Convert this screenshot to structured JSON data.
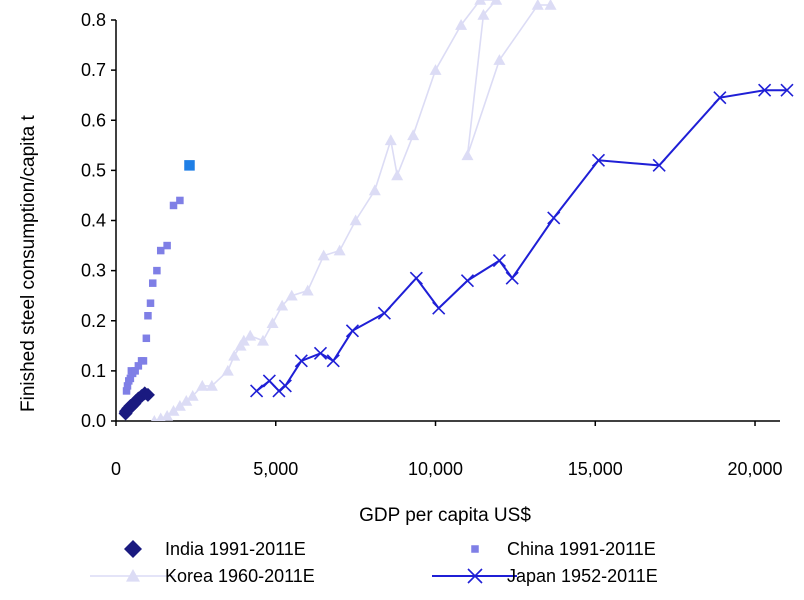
{
  "chart_data": {
    "type": "scatter",
    "title": "",
    "xlabel": "GDP per capita US$",
    "ylabel": "Finished steel consumption/capita t",
    "xlim": [
      0,
      20500
    ],
    "ylim": [
      0,
      0.8
    ],
    "xticks": [
      0,
      5000,
      10000,
      15000,
      20000
    ],
    "xtick_labels": [
      "0",
      "5,000",
      "10,000",
      "15,000",
      "20,000"
    ],
    "yticks": [
      0.0,
      0.1,
      0.2,
      0.3,
      0.4,
      0.5,
      0.6,
      0.7,
      0.8
    ],
    "ytick_labels": [
      "0.0",
      "0.1",
      "0.2",
      "0.3",
      "0.4",
      "0.5",
      "0.6",
      "0.7",
      "0.8"
    ],
    "grid": false,
    "legend_position": "bottom",
    "series": [
      {
        "name": "India 1991-2011E",
        "marker": "diamond",
        "line": false,
        "color": "#1a1a80",
        "points": [
          [
            300,
            0.015
          ],
          [
            310,
            0.018
          ],
          [
            320,
            0.02
          ],
          [
            340,
            0.02
          ],
          [
            360,
            0.022
          ],
          [
            380,
            0.025
          ],
          [
            400,
            0.025
          ],
          [
            420,
            0.027
          ],
          [
            450,
            0.03
          ],
          [
            470,
            0.028
          ],
          [
            500,
            0.03
          ],
          [
            540,
            0.033
          ],
          [
            580,
            0.035
          ],
          [
            620,
            0.04
          ],
          [
            700,
            0.045
          ],
          [
            800,
            0.05
          ],
          [
            900,
            0.055
          ],
          [
            1000,
            0.052
          ]
        ]
      },
      {
        "name": "China 1991-2011E",
        "marker": "square",
        "line": false,
        "color": "#7f7fe6",
        "highlight_color": "#1f7fe6",
        "points": [
          [
            330,
            0.06
          ],
          [
            360,
            0.07
          ],
          [
            400,
            0.08
          ],
          [
            450,
            0.085
          ],
          [
            480,
            0.1
          ],
          [
            520,
            0.095
          ],
          [
            600,
            0.1
          ],
          [
            700,
            0.11
          ],
          [
            800,
            0.12
          ],
          [
            860,
            0.12
          ],
          [
            950,
            0.165
          ],
          [
            1000,
            0.21
          ],
          [
            1080,
            0.235
          ],
          [
            1150,
            0.275
          ],
          [
            1280,
            0.3
          ],
          [
            1400,
            0.34
          ],
          [
            1600,
            0.35
          ],
          [
            1800,
            0.43
          ],
          [
            2000,
            0.44
          ],
          [
            2300,
            0.51
          ]
        ]
      },
      {
        "name": "Korea 1960-2011E",
        "marker": "triangle",
        "line": true,
        "color": "#dcdcf5",
        "points": [
          [
            1200,
            0.0
          ],
          [
            1400,
            0.005
          ],
          [
            1600,
            0.01
          ],
          [
            1800,
            0.02
          ],
          [
            2000,
            0.03
          ],
          [
            2200,
            0.04
          ],
          [
            2400,
            0.05
          ],
          [
            2700,
            0.07
          ],
          [
            3000,
            0.07
          ],
          [
            3500,
            0.1
          ],
          [
            3700,
            0.13
          ],
          [
            3900,
            0.15
          ],
          [
            4000,
            0.16
          ],
          [
            4200,
            0.17
          ],
          [
            4600,
            0.16
          ],
          [
            4900,
            0.195
          ],
          [
            5200,
            0.23
          ],
          [
            5500,
            0.25
          ],
          [
            6000,
            0.26
          ],
          [
            6500,
            0.33
          ],
          [
            7000,
            0.34
          ],
          [
            7500,
            0.4
          ],
          [
            8100,
            0.46
          ],
          [
            8600,
            0.56
          ],
          [
            8800,
            0.49
          ],
          [
            9300,
            0.57
          ],
          [
            10000,
            0.7
          ],
          [
            10800,
            0.79
          ],
          [
            11400,
            0.84
          ],
          [
            11900,
            0.84
          ],
          [
            11500,
            0.81
          ],
          [
            11000,
            0.53
          ],
          [
            12000,
            0.72
          ],
          [
            13200,
            0.83
          ],
          [
            13600,
            0.83
          ]
        ]
      },
      {
        "name": "Japan 1952-2011E",
        "marker": "x",
        "line": true,
        "color": "#1f1fd6",
        "points": [
          [
            4400,
            0.06
          ],
          [
            4800,
            0.08
          ],
          [
            5100,
            0.06
          ],
          [
            5300,
            0.07
          ],
          [
            5800,
            0.12
          ],
          [
            6400,
            0.135
          ],
          [
            6800,
            0.12
          ],
          [
            7400,
            0.18
          ],
          [
            8400,
            0.215
          ],
          [
            9400,
            0.285
          ],
          [
            10100,
            0.225
          ],
          [
            11000,
            0.28
          ],
          [
            12000,
            0.32
          ],
          [
            12400,
            0.285
          ],
          [
            13700,
            0.405
          ],
          [
            15100,
            0.52
          ],
          [
            17000,
            0.51
          ],
          [
            18900,
            0.645
          ],
          [
            20300,
            0.66
          ],
          [
            21000,
            0.66
          ]
        ]
      }
    ]
  }
}
